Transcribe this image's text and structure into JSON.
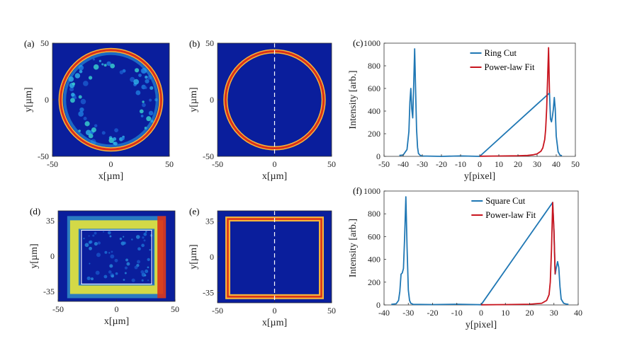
{
  "figure": {
    "colors": {
      "field": "#0a1e9c",
      "hot": "#d9301a",
      "warm": "#f5b43a",
      "fit": "#c8141e",
      "cut": "#1f77b4"
    }
  },
  "chart_data": [
    {
      "id": "a",
      "panel_label": "(a)",
      "type": "heatmap",
      "shape": "ring",
      "mode": "measured",
      "xlabel": "x[µm]",
      "ylabel": "y[µm]",
      "xlim": [
        -50,
        50
      ],
      "ylim": [
        -50,
        50
      ],
      "xticks": [
        "-50",
        "0",
        "50"
      ],
      "yticks": [
        "50",
        "0",
        "-50"
      ]
    },
    {
      "id": "b",
      "panel_label": "(b)",
      "type": "heatmap",
      "shape": "ring",
      "mode": "ideal",
      "xlabel": "x[µm]",
      "ylabel": "y[µm]",
      "xlim": [
        -50,
        50
      ],
      "ylim": [
        -50,
        50
      ],
      "xticks": [
        "-50",
        "0",
        "50"
      ],
      "yticks": [
        "50",
        "0",
        "-50"
      ]
    },
    {
      "id": "c",
      "panel_label": "(c)",
      "type": "line",
      "xlabel": "y[pixel]",
      "ylabel": "Intensity [arb.]",
      "xlim": [
        -50,
        50
      ],
      "ylim": [
        0,
        1000
      ],
      "xticks": [
        "-50",
        "-40",
        "-30",
        "-20",
        "-10",
        "0",
        "10",
        "20",
        "30",
        "40",
        "50"
      ],
      "yticks": [
        "1000",
        "800",
        "600",
        "400",
        "200",
        "0"
      ],
      "legend": [
        "Ring Cut",
        "Power-law Fit"
      ],
      "series": [
        {
          "name": "Ring Cut",
          "color": "#1f77b4",
          "x": [
            -42,
            -40,
            -38,
            -37,
            -36.5,
            -36,
            -35.5,
            -35,
            -34.5,
            -34,
            -33.5,
            -33,
            -32.5,
            -32,
            -31,
            -30,
            -20,
            -10,
            0,
            36.5,
            37,
            37.5,
            38,
            38.5,
            39,
            39.5,
            40,
            41,
            42,
            43
          ],
          "y": [
            8,
            12,
            60,
            220,
            480,
            600,
            420,
            340,
            640,
            950,
            600,
            240,
            80,
            25,
            8,
            3,
            0,
            4,
            0,
            560,
            330,
            305,
            350,
            420,
            520,
            420,
            180,
            40,
            10,
            6
          ]
        },
        {
          "name": "Power-law Fit",
          "color": "#c8141e",
          "x": [
            0,
            10,
            20,
            25,
            28,
            30,
            32,
            33,
            34,
            34.5,
            35,
            35.5,
            36,
            36.5
          ],
          "y": [
            1,
            3,
            5,
            8,
            14,
            22,
            45,
            75,
            150,
            240,
            420,
            700,
            960,
            560
          ]
        }
      ]
    },
    {
      "id": "d",
      "panel_label": "(d)",
      "type": "heatmap",
      "shape": "rectangle",
      "mode": "measured",
      "xlabel": "x[µm]",
      "ylabel": "y[µm]",
      "xlim": [
        -50,
        50
      ],
      "ylim": [
        -45,
        45
      ],
      "xticks": [
        "-50",
        "0",
        "50"
      ],
      "yticks": [
        "35",
        "0",
        "-35"
      ]
    },
    {
      "id": "e",
      "panel_label": "(e)",
      "type": "heatmap",
      "shape": "rectangle",
      "mode": "ideal",
      "xlabel": "x[µm]",
      "ylabel": "y[µm]",
      "xlim": [
        -50,
        50
      ],
      "ylim": [
        -45,
        45
      ],
      "xticks": [
        "-50",
        "0",
        "50"
      ],
      "yticks": [
        "35",
        "0",
        "-35"
      ]
    },
    {
      "id": "f",
      "panel_label": "(f)",
      "type": "line",
      "xlabel": "y[pixel]",
      "ylabel": "Intensity [arb.]",
      "xlim": [
        -40,
        40
      ],
      "ylim": [
        0,
        1000
      ],
      "xticks": [
        "-40",
        "-30",
        "-20",
        "-10",
        "0",
        "10",
        "20",
        "30",
        "40"
      ],
      "yticks": [
        "1000",
        "800",
        "600",
        "400",
        "200",
        "0"
      ],
      "legend": [
        "Square Cut",
        "Power-law Fit"
      ],
      "series": [
        {
          "name": "Square Cut",
          "color": "#1f77b4",
          "x": [
            -37,
            -35,
            -34,
            -33.5,
            -33,
            -32.5,
            -32,
            -31.5,
            -31,
            -30.5,
            -30,
            -29.5,
            -29,
            -28,
            -20,
            -10,
            0,
            29.5,
            30,
            30.5,
            31,
            31.5,
            32,
            32.5,
            33,
            34,
            35,
            36
          ],
          "y": [
            5,
            10,
            40,
            120,
            270,
            280,
            320,
            600,
            950,
            500,
            130,
            40,
            15,
            5,
            3,
            6,
            2,
            900,
            650,
            270,
            330,
            380,
            330,
            160,
            50,
            15,
            8,
            5
          ]
        },
        {
          "name": "Power-law Fit",
          "color": "#c8141e",
          "x": [
            0,
            10,
            20,
            25,
            27,
            28,
            28.5,
            29,
            29.5,
            30,
            30.5
          ],
          "y": [
            1,
            3,
            6,
            15,
            40,
            90,
            200,
            480,
            900,
            650,
            270
          ]
        }
      ]
    }
  ]
}
